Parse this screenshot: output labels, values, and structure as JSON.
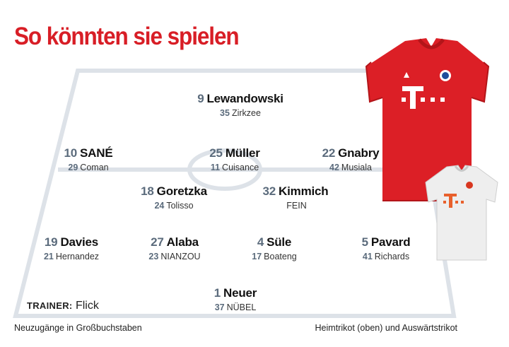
{
  "headline": "So könnten sie spielen",
  "trainer": {
    "label": "TRAINER:",
    "name": "Flick"
  },
  "footnotes": {
    "left": "Neuzugänge in Großbuchstaben",
    "right": "Heimtrikot (oben) und Auswärtstrikot"
  },
  "lineup": {
    "striker": {
      "number": "9",
      "name": "Lewandowski",
      "backup_number": "35",
      "backup_name": "Zirkzee"
    },
    "left_wing": {
      "number": "10",
      "name": "SANÉ",
      "backup_number": "29",
      "backup_name": "Coman"
    },
    "att_mid": {
      "number": "25",
      "name": "Müller",
      "backup_number": "11",
      "backup_name": "Cuisance"
    },
    "right_wing": {
      "number": "22",
      "name": "Gnabry",
      "backup_number": "42",
      "backup_name": "Musiala"
    },
    "cm_left": {
      "number": "18",
      "name": "Goretzka",
      "backup_number": "24",
      "backup_name": "Tolisso"
    },
    "cm_right": {
      "number": "32",
      "name": "Kimmich",
      "backup_number": "",
      "backup_name": "FEIN"
    },
    "lb": {
      "number": "19",
      "name": "Davies",
      "backup_number": "21",
      "backup_name": "Hernandez"
    },
    "cb_left": {
      "number": "27",
      "name": "Alaba",
      "backup_number": "23",
      "backup_name": "NIANZOU"
    },
    "cb_right": {
      "number": "4",
      "name": "Süle",
      "backup_number": "17",
      "backup_name": "Boateng"
    },
    "rb": {
      "number": "5",
      "name": "Pavard",
      "backup_number": "41",
      "backup_name": "Richards"
    },
    "gk": {
      "number": "1",
      "name": "Neuer",
      "backup_number": "37",
      "backup_name": "NÜBEL"
    }
  },
  "colors": {
    "headline": "#d81e26",
    "pitch_lines": "#dde2e8",
    "numbers": "#5b6b7c",
    "home_kit": "#dc1f26",
    "away_kit": "#eeeeee"
  },
  "icons": {
    "home_jersey": "red-home-jersey-image",
    "away_jersey": "white-away-jersey-image"
  }
}
